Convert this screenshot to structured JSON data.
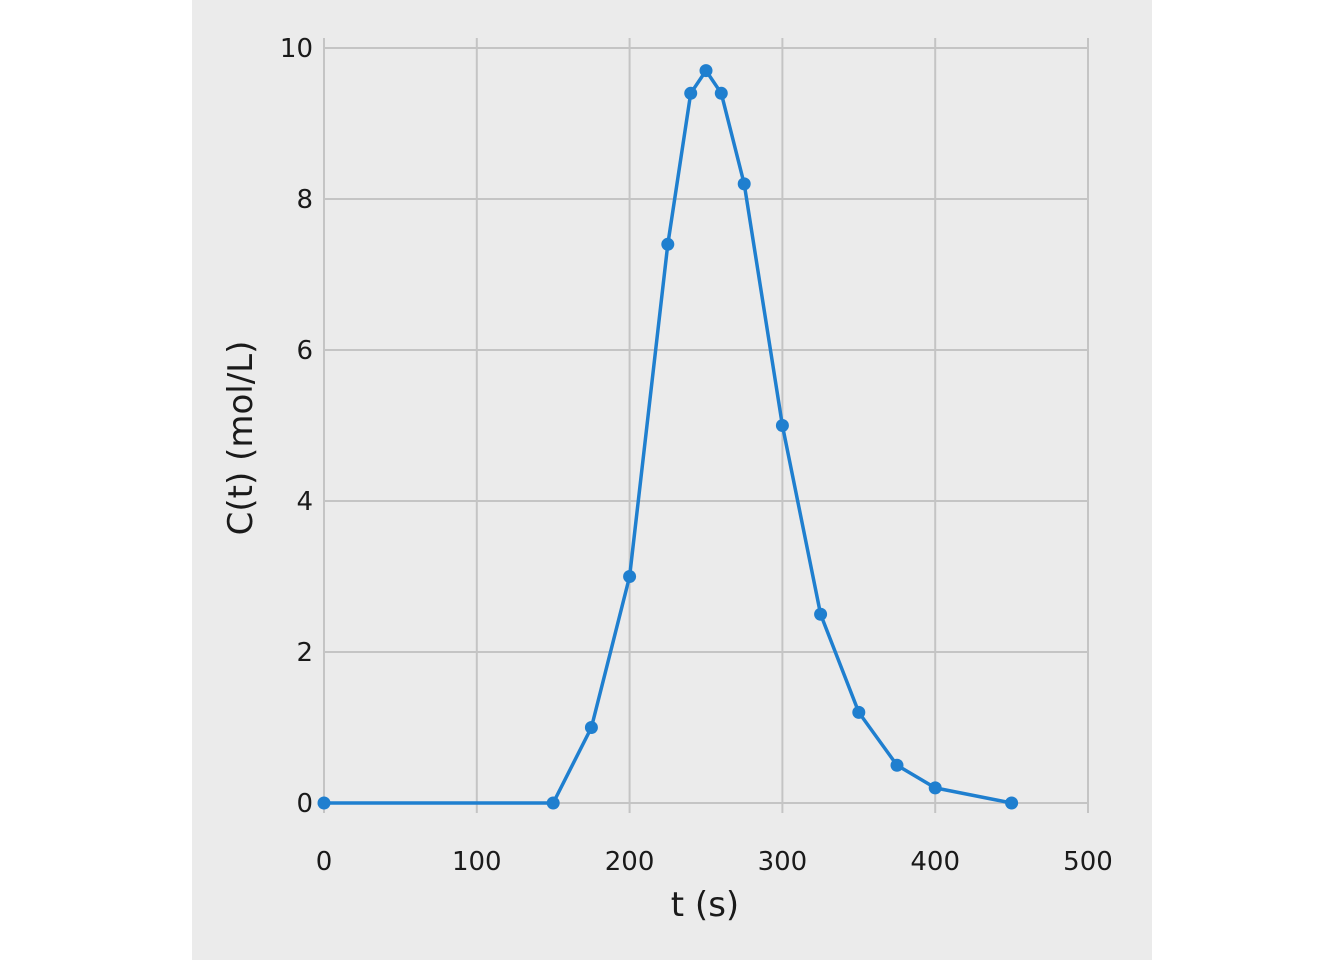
{
  "chart_data": {
    "type": "line",
    "title": "",
    "xlabel": "t (s)",
    "ylabel": "C(t) (mol/L)",
    "xlim": [
      0,
      500
    ],
    "ylim": [
      0,
      10
    ],
    "x_ticks": [
      0,
      100,
      200,
      300,
      400,
      500
    ],
    "y_ticks": [
      0,
      2,
      4,
      6,
      8,
      10
    ],
    "x_tick_labels": [
      "0",
      "100",
      "200",
      "300",
      "400",
      "500"
    ],
    "y_tick_labels": [
      "0",
      "2",
      "4",
      "6",
      "8",
      "10"
    ],
    "grid": true,
    "color": "#1f7fcf",
    "series": [
      {
        "x": [
          0,
          150,
          175,
          200,
          225,
          240,
          250,
          260,
          275,
          300,
          325,
          350,
          375,
          400,
          450
        ],
        "y": [
          0,
          0,
          1,
          3,
          7.4,
          9.4,
          9.7,
          9.4,
          8.2,
          5.0,
          2.5,
          1.2,
          0.5,
          0.2,
          0
        ],
        "marker": "circle"
      }
    ]
  }
}
